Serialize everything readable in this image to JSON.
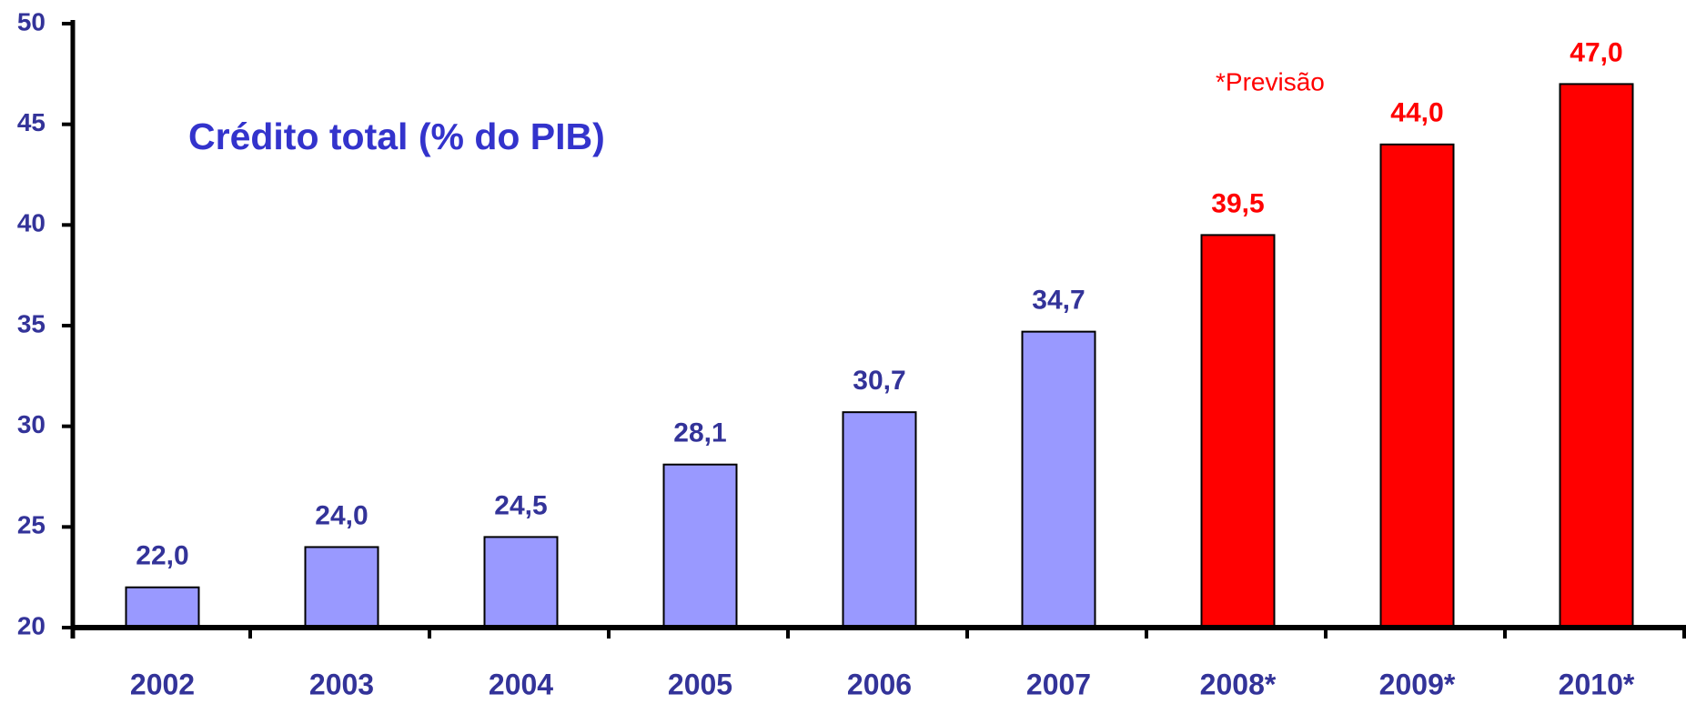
{
  "chart_data": {
    "type": "bar",
    "title": "Crédito total (% do PIB)",
    "annotation": "*Previsão",
    "categories": [
      "2002",
      "2003",
      "2004",
      "2005",
      "2006",
      "2007",
      "2008*",
      "2009*",
      "2010*"
    ],
    "values": [
      22.0,
      24.0,
      24.5,
      28.1,
      30.7,
      34.7,
      39.5,
      44.0,
      47.0
    ],
    "value_labels": [
      "22,0",
      "24,0",
      "24,5",
      "28,1",
      "30,7",
      "34,7",
      "39,5",
      "44,0",
      "47,0"
    ],
    "colors": [
      "#9999ff",
      "#9999ff",
      "#9999ff",
      "#9999ff",
      "#9999ff",
      "#9999ff",
      "#ff0000",
      "#ff0000",
      "#ff0000"
    ],
    "label_colors": [
      "#333399",
      "#333399",
      "#333399",
      "#333399",
      "#333399",
      "#333399",
      "#ff0000",
      "#ff0000",
      "#ff0000"
    ],
    "ylim": [
      20,
      50
    ],
    "yticks": [
      20,
      25,
      30,
      35,
      40,
      45,
      50
    ],
    "grid": false
  }
}
